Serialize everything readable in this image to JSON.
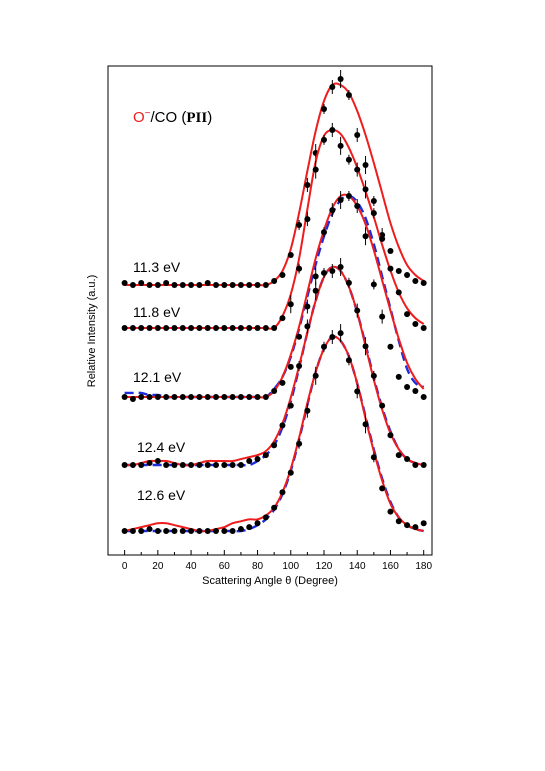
{
  "chart_data": {
    "type": "line",
    "title": {
      "species": "O",
      "charge": "−",
      "target": "/CO (",
      "state": "PII",
      "close": ")"
    },
    "xlabel": "Scattering Angle θ (Degree)",
    "ylabel": "Relative Intensity (a.u.)",
    "xlim": [
      -10,
      185
    ],
    "xticks": [
      0,
      20,
      40,
      60,
      80,
      100,
      120,
      140,
      160,
      180
    ],
    "x_minor_step": 10,
    "grid": false,
    "colors": {
      "fit": "#ee1c1c",
      "alt_fit": "#1c2edc",
      "data": "#000000",
      "title_species": "#ee1c1c"
    },
    "series": [
      {
        "name": "11.3 eV",
        "baseline": 0.0,
        "peak": {
          "center": 130,
          "amplitude": 1.0,
          "sigma_left": 11.0,
          "sigma_right": 15.5
        },
        "data_x": [
          0,
          5,
          10,
          15,
          20,
          25,
          30,
          35,
          40,
          45,
          50,
          55,
          60,
          65,
          70,
          75,
          80,
          85,
          90,
          95,
          100,
          105,
          110,
          115,
          120,
          125,
          130,
          135,
          140,
          145,
          150,
          155,
          160,
          165,
          170,
          175,
          180
        ],
        "data_y": [
          0.01,
          0.0,
          0.01,
          0.0,
          0.0,
          0.01,
          0.0,
          0.0,
          0.0,
          0.0,
          0.01,
          0.0,
          0.0,
          0.0,
          0.0,
          0.0,
          0.0,
          0.0,
          0.02,
          0.05,
          0.15,
          0.3,
          0.5,
          0.66,
          0.88,
          0.99,
          1.03,
          0.95,
          0.75,
          0.6,
          0.42,
          0.25,
          0.17,
          0.07,
          0.05,
          0.02,
          0.01
        ],
        "fit_y": [
          0.0,
          0.0,
          0.0,
          0.0,
          0.0,
          0.0,
          0.0,
          0.0,
          0.0,
          0.0,
          0.0,
          0.0,
          0.0,
          0.0,
          0.0,
          0.0,
          0.0,
          0.0,
          0.02,
          0.07,
          0.18,
          0.36,
          0.57,
          0.77,
          0.92,
          1.0,
          1.0,
          0.96,
          0.87,
          0.75,
          0.61,
          0.46,
          0.31,
          0.19,
          0.1,
          0.05,
          0.02
        ]
      },
      {
        "name": "11.8 eV",
        "baseline": 0.0,
        "peak": {
          "center": 125,
          "amplitude": 1.0,
          "sigma_left": 10.5,
          "sigma_right": 17.0
        },
        "data_x": [
          0,
          5,
          10,
          15,
          20,
          25,
          30,
          35,
          40,
          45,
          50,
          55,
          60,
          65,
          70,
          75,
          80,
          85,
          90,
          95,
          100,
          105,
          110,
          115,
          120,
          125,
          130,
          135,
          140,
          145,
          150,
          155,
          160,
          165,
          170,
          175,
          180
        ],
        "data_y": [
          0.0,
          0.0,
          0.0,
          0.0,
          0.0,
          0.0,
          0.0,
          0.0,
          0.0,
          0.0,
          0.0,
          0.0,
          0.0,
          0.0,
          0.0,
          0.0,
          0.0,
          0.0,
          0.0,
          0.05,
          0.12,
          0.3,
          0.55,
          0.8,
          0.95,
          1.0,
          0.92,
          0.85,
          0.8,
          0.7,
          0.58,
          0.45,
          0.3,
          0.18,
          0.07,
          0.02,
          0.0
        ],
        "fit_y": [
          0.0,
          0.0,
          0.0,
          0.0,
          0.0,
          0.0,
          0.0,
          0.0,
          0.0,
          0.0,
          0.0,
          0.0,
          0.0,
          0.0,
          0.0,
          0.0,
          0.0,
          0.0,
          0.0,
          0.06,
          0.17,
          0.35,
          0.6,
          0.84,
          0.97,
          1.0,
          0.98,
          0.91,
          0.81,
          0.69,
          0.56,
          0.42,
          0.29,
          0.18,
          0.1,
          0.05,
          0.02
        ]
      },
      {
        "name": "12.1 eV",
        "baseline": 0.0,
        "peak": {
          "center": 133,
          "amplitude": 1.0,
          "sigma_left": 14.0,
          "sigma_right": 15.0
        },
        "data_x": [
          0,
          5,
          10,
          15,
          20,
          25,
          30,
          35,
          40,
          45,
          50,
          55,
          60,
          65,
          70,
          75,
          80,
          85,
          90,
          95,
          100,
          105,
          110,
          115,
          120,
          125,
          130,
          135,
          140,
          145,
          150,
          155,
          160,
          165,
          170,
          175,
          180
        ],
        "data_y": [
          0.0,
          -0.01,
          0.0,
          0.0,
          0.0,
          0.0,
          0.0,
          0.0,
          0.0,
          0.0,
          0.0,
          0.0,
          0.0,
          0.0,
          0.0,
          0.0,
          0.0,
          0.0,
          0.03,
          0.07,
          0.15,
          0.3,
          0.45,
          0.6,
          0.82,
          0.93,
          0.98,
          1.0,
          0.95,
          0.8,
          0.56,
          0.4,
          0.25,
          0.1,
          0.05,
          0.03,
          0.0
        ],
        "fit_y": [
          0.0,
          0.0,
          0.0,
          0.0,
          0.0,
          0.0,
          0.0,
          0.0,
          0.0,
          0.0,
          0.0,
          0.0,
          0.0,
          0.0,
          0.0,
          0.0,
          0.0,
          0.0,
          0.03,
          0.1,
          0.21,
          0.35,
          0.52,
          0.69,
          0.83,
          0.94,
          1.0,
          1.0,
          0.95,
          0.86,
          0.73,
          0.58,
          0.43,
          0.29,
          0.17,
          0.09,
          0.04
        ],
        "alt_fit_y": [
          0.02,
          0.02,
          0.02,
          0.01,
          0.01,
          0.0,
          0.0,
          0.0,
          0.0,
          0.0,
          0.0,
          0.0,
          0.0,
          0.0,
          0.0,
          0.0,
          0.0,
          0.0,
          0.04,
          0.1,
          0.2,
          0.34,
          0.5,
          0.66,
          0.8,
          0.91,
          0.98,
          1.0,
          0.97,
          0.89,
          0.76,
          0.6,
          0.44,
          0.28,
          0.14,
          0.07,
          0.05
        ]
      },
      {
        "name": "12.4 eV",
        "baseline": 0.0,
        "peak": {
          "center": 126,
          "amplitude": 1.0,
          "sigma_left": 14.5,
          "sigma_right": 14.0
        },
        "data_x": [
          0,
          5,
          10,
          15,
          20,
          25,
          30,
          35,
          40,
          45,
          50,
          55,
          60,
          65,
          70,
          75,
          80,
          85,
          90,
          95,
          100,
          105,
          110,
          115,
          120,
          125,
          130,
          135,
          140,
          145,
          150,
          155,
          160,
          165,
          170,
          175,
          180
        ],
        "data_y": [
          0.0,
          0.0,
          0.0,
          0.01,
          0.02,
          0.0,
          0.0,
          0.0,
          0.0,
          0.0,
          0.0,
          0.0,
          0.0,
          0.0,
          0.0,
          0.02,
          0.03,
          0.05,
          0.1,
          0.2,
          0.3,
          0.5,
          0.7,
          0.88,
          0.97,
          0.98,
          1.0,
          0.92,
          0.78,
          0.6,
          0.45,
          0.3,
          0.15,
          0.05,
          0.03,
          0.0,
          0.0
        ],
        "fit_y": [
          0.0,
          0.0,
          0.01,
          0.02,
          0.02,
          0.02,
          0.01,
          0.0,
          0.0,
          0.01,
          0.02,
          0.02,
          0.02,
          0.02,
          0.03,
          0.04,
          0.05,
          0.07,
          0.12,
          0.21,
          0.34,
          0.5,
          0.67,
          0.83,
          0.95,
          1.0,
          0.98,
          0.9,
          0.77,
          0.6,
          0.43,
          0.28,
          0.16,
          0.08,
          0.03,
          0.01,
          0.0
        ],
        "alt_fit_y": [
          0.0,
          0.0,
          0.0,
          0.0,
          0.0,
          0.0,
          0.0,
          0.0,
          0.0,
          0.0,
          0.0,
          0.0,
          0.0,
          0.0,
          0.0,
          0.0,
          0.02,
          0.05,
          0.1,
          0.19,
          0.32,
          0.49,
          0.67,
          0.83,
          0.95,
          1.0,
          0.98,
          0.9,
          0.77,
          0.61,
          0.44,
          0.29,
          0.17,
          0.08,
          0.03,
          0.01,
          0.0
        ]
      },
      {
        "name": "12.6 eV",
        "baseline": 0.0,
        "peak": {
          "center": 127,
          "amplitude": 1.0,
          "sigma_left": 14.0,
          "sigma_right": 13.5
        },
        "data_x": [
          0,
          5,
          10,
          15,
          20,
          25,
          30,
          35,
          40,
          45,
          50,
          55,
          60,
          65,
          70,
          75,
          80,
          85,
          90,
          95,
          100,
          105,
          110,
          115,
          120,
          125,
          130,
          135,
          140,
          145,
          150,
          155,
          160,
          165,
          170,
          175,
          180
        ],
        "data_y": [
          0.0,
          0.0,
          0.0,
          0.01,
          0.0,
          0.0,
          0.0,
          0.0,
          0.0,
          0.0,
          0.0,
          0.0,
          0.0,
          0.0,
          0.01,
          0.02,
          0.04,
          0.07,
          0.12,
          0.2,
          0.3,
          0.45,
          0.62,
          0.8,
          0.95,
          1.0,
          1.02,
          0.88,
          0.72,
          0.55,
          0.38,
          0.22,
          0.1,
          0.05,
          0.03,
          0.02,
          0.04
        ],
        "fit_y": [
          0.0,
          0.01,
          0.02,
          0.03,
          0.04,
          0.04,
          0.03,
          0.02,
          0.01,
          0.0,
          0.0,
          0.01,
          0.02,
          0.04,
          0.05,
          0.06,
          0.06,
          0.08,
          0.12,
          0.2,
          0.32,
          0.48,
          0.66,
          0.82,
          0.94,
          1.0,
          0.98,
          0.9,
          0.76,
          0.58,
          0.41,
          0.26,
          0.14,
          0.07,
          0.03,
          0.01,
          0.0
        ],
        "alt_fit_y": [
          0.0,
          0.0,
          0.0,
          0.0,
          0.0,
          0.0,
          0.0,
          0.0,
          0.0,
          0.0,
          0.0,
          0.0,
          0.0,
          0.0,
          0.0,
          0.01,
          0.03,
          0.06,
          0.11,
          0.19,
          0.31,
          0.47,
          0.65,
          0.82,
          0.94,
          1.0,
          0.98,
          0.9,
          0.76,
          0.59,
          0.42,
          0.27,
          0.15,
          0.07,
          0.03,
          0.01,
          0.0
        ]
      }
    ]
  }
}
